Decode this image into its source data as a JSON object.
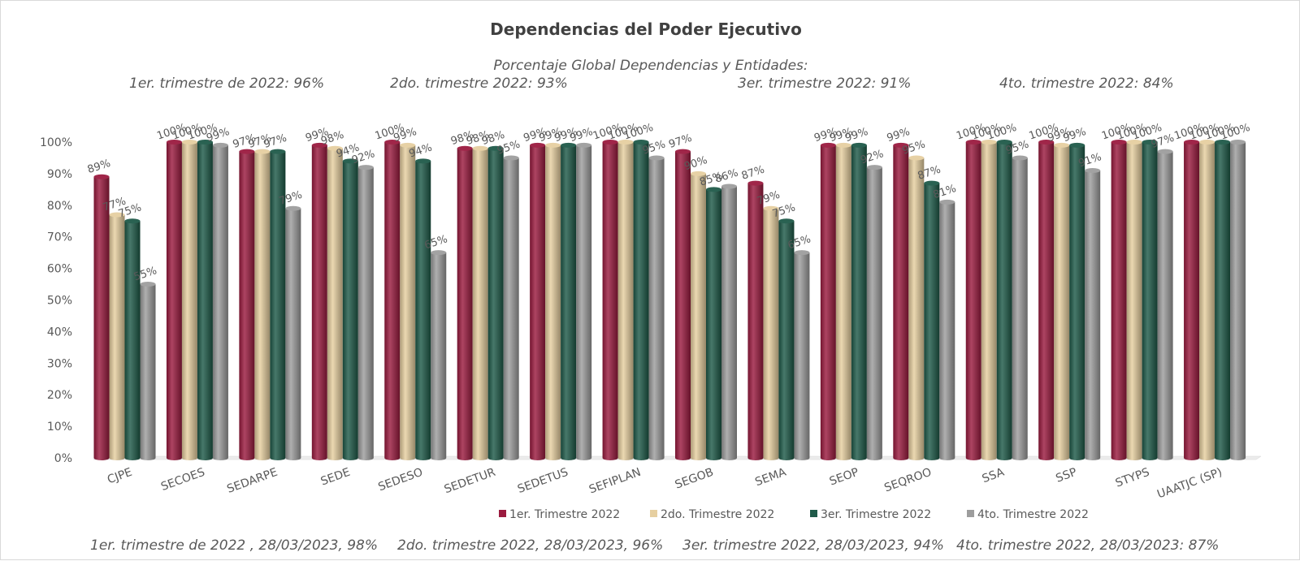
{
  "chart_data": {
    "type": "bar",
    "title": "Dependencias del Poder Ejecutivo",
    "subtitle": "Porcentaje Global  Dependencias y Entidades:",
    "header_notes": [
      "1er. trimestre de 2022: 96%",
      "2do. trimestre 2022: 93%",
      "3er. trimestre 2022: 91%",
      "4to. trimestre 2022: 84%"
    ],
    "footer_notes": [
      "1er. trimestre de 2022 , 28/03/2023, 98%",
      "2do. trimestre 2022, 28/03/2023, 96%",
      "3er. trimestre 2022, 28/03/2023, 94%",
      "4to. trimestre 2022, 28/03/2023: 87%"
    ],
    "categories": [
      "CJPE",
      "SECOES",
      "SEDARPE",
      "SEDE",
      "SEDESO",
      "SEDETUR",
      "SEDETUS",
      "SEFIPLAN",
      "SEGOB",
      "SEMA",
      "SEOP",
      "SEQROO",
      "SSA",
      "SSP",
      "STYPS",
      "UAATJC (SP)"
    ],
    "series": [
      {
        "name": "1er. Trimestre 2022",
        "color": "#9b1b3f",
        "values": [
          89,
          100,
          97,
          99,
          100,
          98,
          99,
          100,
          97,
          87,
          99,
          99,
          100,
          100,
          100,
          100
        ]
      },
      {
        "name": "2do. Trimestre 2022",
        "color": "#e6cfa0",
        "values": [
          77,
          100,
          97,
          98,
          99,
          98,
          99,
          100,
          90,
          79,
          99,
          95,
          100,
          99,
          100,
          100
        ]
      },
      {
        "name": "3er. Trimestre 2022",
        "color": "#1f5a49",
        "values": [
          75,
          100,
          97,
          94,
          94,
          98,
          99,
          100,
          85,
          75,
          99,
          87,
          100,
          99,
          100,
          100
        ]
      },
      {
        "name": "4to. Trimestre 2022",
        "color": "#9d9d9d",
        "values": [
          55,
          99,
          79,
          92,
          65,
          95,
          99,
          95,
          86,
          65,
          92,
          81,
          95,
          91,
          97,
          100
        ]
      }
    ],
    "ylim": [
      0,
      100
    ],
    "yticks": [
      "0%",
      "10%",
      "20%",
      "30%",
      "40%",
      "50%",
      "60%",
      "70%",
      "80%",
      "90%",
      "100%"
    ],
    "legend_position": "bottom",
    "grid": false
  }
}
